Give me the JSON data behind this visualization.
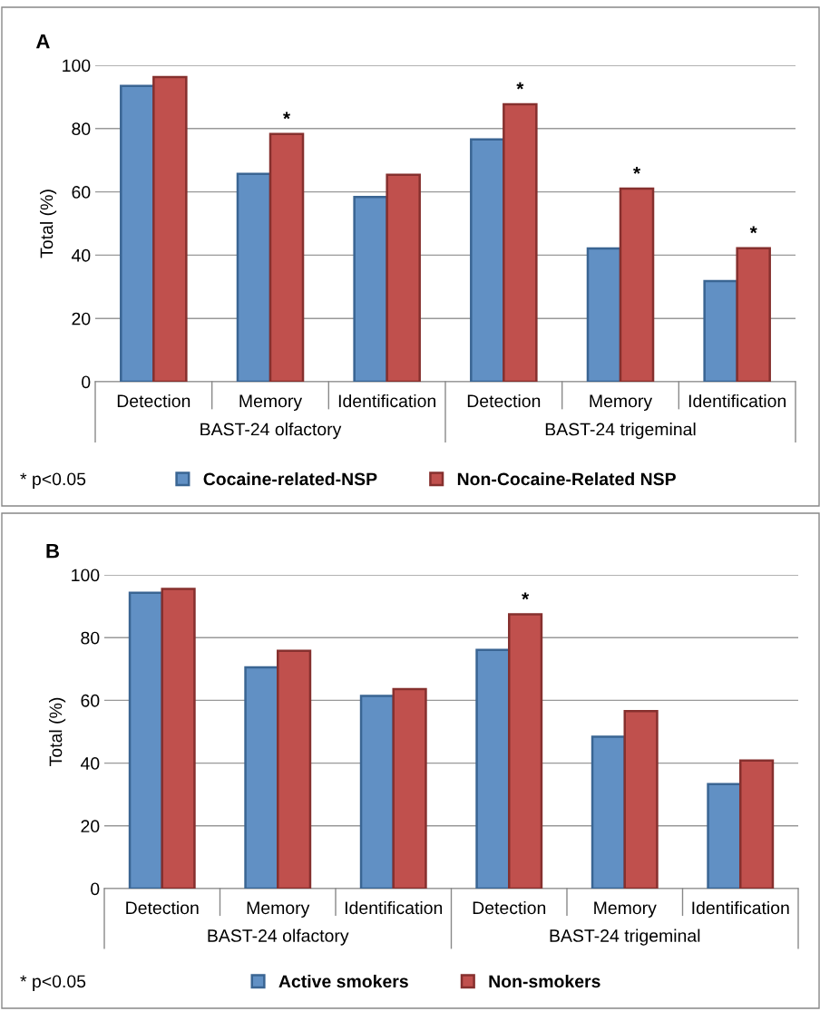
{
  "chart_data": [
    {
      "type": "bar",
      "title": "A",
      "ylabel": "Total (%)",
      "categories": [
        "Detection",
        "Memory",
        "Identification",
        "Detection",
        "Memory",
        "Identification"
      ],
      "series": [
        {
          "name": "Cocaine-related-NSP",
          "color": "#6190c4",
          "values": [
            93.5,
            65.7,
            58.4,
            76.6,
            42.1,
            31.8
          ]
        },
        {
          "name": "Non-Cocaine-Related NSP",
          "color": "#c0504d",
          "values": [
            96.3,
            78.3,
            65.4,
            87.7,
            61.0,
            42.2
          ],
          "value_labels": [
            null,
            "*",
            null,
            "*",
            "*",
            "*"
          ]
        }
      ],
      "ylim": [
        0,
        100
      ],
      "yticks": [
        0,
        20,
        40,
        60,
        80,
        100
      ],
      "grid": "y",
      "legend": "bottom",
      "annotations": [
        "BAST-24 olfactory",
        "BAST-24 trigeminal",
        "* p<0.05"
      ]
    },
    {
      "type": "bar",
      "title": "B",
      "ylabel": "Total (%)",
      "categories": [
        "Detection",
        "Memory",
        "Identification",
        "Detection",
        "Memory",
        "Identification"
      ],
      "series": [
        {
          "name": "Active smokers",
          "color": "#6190c4",
          "values": [
            94.3,
            70.5,
            61.4,
            76.1,
            48.4,
            33.3
          ]
        },
        {
          "name": "Non-smokers",
          "color": "#c0504d",
          "values": [
            95.5,
            75.8,
            63.6,
            87.4,
            56.6,
            40.8
          ],
          "value_labels": [
            null,
            null,
            null,
            "*",
            null,
            null
          ]
        }
      ],
      "ylim": [
        0,
        100
      ],
      "yticks": [
        0,
        20,
        40,
        60,
        80,
        100
      ],
      "grid": "y",
      "legend": "bottom",
      "annotations": [
        "BAST-24 olfactory",
        "BAST-24 trigeminal",
        "* p<0.05"
      ]
    }
  ]
}
